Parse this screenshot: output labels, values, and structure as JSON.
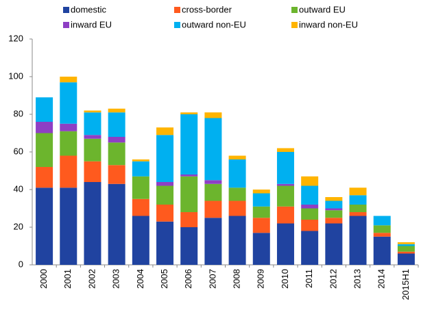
{
  "chart_data": {
    "type": "stacked-bar",
    "categories": [
      "2000",
      "2001",
      "2002",
      "2003",
      "2004",
      "2005",
      "2006",
      "2007",
      "2008",
      "2009",
      "2010",
      "2011",
      "2012",
      "2013",
      "2014",
      "2015H1"
    ],
    "series": [
      {
        "name": "domestic",
        "color": "#2043a0",
        "values": [
          41,
          41,
          44,
          43,
          26,
          23,
          20,
          25,
          26,
          17,
          22,
          18,
          22,
          26,
          15,
          6
        ]
      },
      {
        "name": "cross-border",
        "color": "#ff5a1e",
        "values": [
          11,
          17,
          11,
          10,
          9,
          9,
          8,
          9,
          8,
          8,
          9,
          6,
          3,
          2,
          2,
          1
        ]
      },
      {
        "name": "outward EU",
        "color": "#6cb52d",
        "values": [
          18,
          13,
          12,
          12,
          12,
          10,
          19,
          9,
          7,
          6,
          11,
          6,
          4,
          4,
          4,
          3
        ]
      },
      {
        "name": "inward EU",
        "color": "#8e3fc4",
        "values": [
          6,
          4,
          2,
          3,
          0,
          2,
          1,
          2,
          0,
          0,
          1,
          2,
          1,
          0,
          0,
          0
        ]
      },
      {
        "name": "outward non-EU",
        "color": "#00b0f0",
        "values": [
          13,
          22,
          12,
          13,
          8,
          25,
          32,
          33,
          15,
          7,
          17,
          10,
          4,
          5,
          5,
          1
        ]
      },
      {
        "name": "inward non-EU",
        "color": "#ffb400",
        "values": [
          0,
          3,
          1,
          2,
          1,
          4,
          1,
          3,
          2,
          2,
          2,
          5,
          2,
          4,
          0,
          1
        ]
      }
    ],
    "ylim": [
      0,
      120
    ],
    "yticks": [
      0,
      20,
      40,
      60,
      80,
      100,
      120
    ],
    "grid": false
  }
}
